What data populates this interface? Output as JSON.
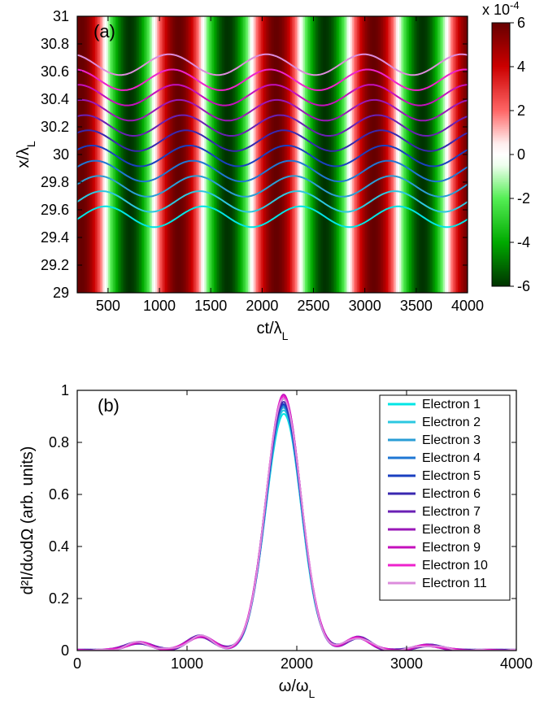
{
  "figure_bg": "#ffffff",
  "panel_a": {
    "label": "(a)",
    "xlabel": "ct/λ",
    "xlabel_sub": "L",
    "ylabel": "x/λ",
    "ylabel_sub": "L",
    "xlim": [
      200,
      4000
    ],
    "xticks": [
      500,
      1000,
      1500,
      2000,
      2500,
      3000,
      3500,
      4000
    ],
    "ylim": [
      29,
      31
    ],
    "yticks": [
      29,
      29.2,
      29.4,
      29.6,
      29.8,
      30,
      30.2,
      30.4,
      30.6,
      30.8,
      31
    ],
    "axis_color": "#000000",
    "tick_fontsize": 18,
    "label_fontsize": 20,
    "label_subfontsize": 14,
    "panel_fontsize": 22,
    "heatmap": {
      "period_x": 950,
      "field_amp": 0.0006,
      "colormap_stops": [
        {
          "v": -6,
          "c": "#003300"
        },
        {
          "v": -4,
          "c": "#00aa00"
        },
        {
          "v": -2,
          "c": "#55ee55"
        },
        {
          "v": -0.5,
          "c": "#eeffee"
        },
        {
          "v": 0,
          "c": "#ffffff"
        },
        {
          "v": 0.5,
          "c": "#ffeeee"
        },
        {
          "v": 2,
          "c": "#ff6666"
        },
        {
          "v": 4,
          "c": "#cc0000"
        },
        {
          "v": 6,
          "c": "#660000"
        }
      ]
    },
    "trajectories": {
      "n": 11,
      "base_y": [
        29.55,
        29.66,
        29.77,
        29.88,
        29.99,
        30.1,
        30.21,
        30.32,
        30.43,
        30.54,
        30.65
      ],
      "amplitude": 0.075,
      "period_x": 950,
      "phase_per_idx": 0.22,
      "line_width": 2.0,
      "colors": [
        "#00e5e5",
        "#2cc8e0",
        "#2a9ed6",
        "#1f77d4",
        "#1a3fc0",
        "#3928b0",
        "#6a20b4",
        "#9a18b8",
        "#c410bc",
        "#ee22cc",
        "#dc8cdc"
      ]
    },
    "colorbar": {
      "title": "x 10",
      "title_exp": "-4",
      "ticks": [
        -6,
        -4,
        -2,
        0,
        2,
        4,
        6
      ],
      "bar_outline": "#000000"
    }
  },
  "panel_b": {
    "label": "(b)",
    "xlabel": "ω/ω",
    "xlabel_sub": "L",
    "ylabel": "d²I/dωdΩ (arb. units)",
    "xlim": [
      0,
      4000
    ],
    "xticks": [
      0,
      1000,
      2000,
      3000,
      4000
    ],
    "ylim": [
      0,
      1
    ],
    "yticks": [
      0,
      0.2,
      0.4,
      0.6,
      0.8,
      1
    ],
    "axis_color": "#000000",
    "tick_fontsize": 18,
    "label_fontsize": 20,
    "panel_fontsize": 22,
    "curves": {
      "n": 11,
      "line_width": 2.0,
      "colors": [
        "#00e5e5",
        "#2cc8e0",
        "#2a9ed6",
        "#1f77d4",
        "#1a3fc0",
        "#3928b0",
        "#6a20b4",
        "#9a18b8",
        "#c410bc",
        "#ee22cc",
        "#dc8cdc"
      ],
      "peak_center": 1880,
      "peak_width_sigma": 160,
      "peak_heights": [
        0.91,
        0.92,
        0.93,
        0.94,
        0.95,
        0.96,
        0.97,
        0.975,
        0.98,
        0.975,
        0.97
      ],
      "sidelobes": [
        {
          "center": 560,
          "sigma": 120,
          "amp": 0.03
        },
        {
          "center": 1120,
          "sigma": 120,
          "amp": 0.055
        },
        {
          "center": 2560,
          "sigma": 110,
          "amp": 0.05
        },
        {
          "center": 3200,
          "sigma": 120,
          "amp": 0.02
        }
      ]
    },
    "legend": {
      "border_color": "#000000",
      "bg": "#ffffff",
      "fontsize": 16,
      "swatch_len": 34,
      "items": [
        {
          "label": "Electron 1",
          "color": "#00e5e5"
        },
        {
          "label": "Electron 2",
          "color": "#2cc8e0"
        },
        {
          "label": "Electron 3",
          "color": "#2a9ed6"
        },
        {
          "label": "Electron 4",
          "color": "#1f77d4"
        },
        {
          "label": "Electron 5",
          "color": "#1a3fc0"
        },
        {
          "label": "Electron 6",
          "color": "#3928b0"
        },
        {
          "label": "Electron 7",
          "color": "#6a20b4"
        },
        {
          "label": "Electron 8",
          "color": "#9a18b8"
        },
        {
          "label": "Electron 9",
          "color": "#c410bc"
        },
        {
          "label": "Electron 10",
          "color": "#ee22cc"
        },
        {
          "label": "Electron 11",
          "color": "#dc8cdc"
        }
      ]
    }
  }
}
